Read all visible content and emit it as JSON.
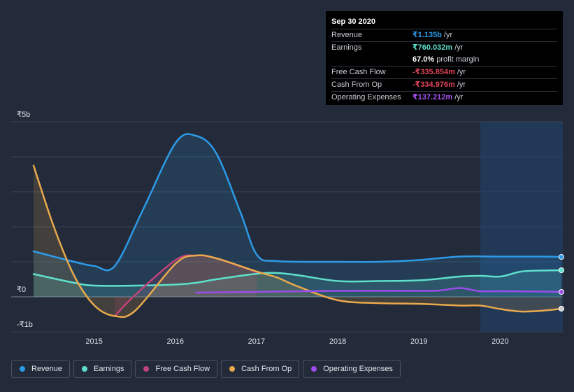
{
  "tooltip": {
    "date": "Sep 30 2020",
    "rows": [
      {
        "key": "Revenue",
        "value": "₹1.135b",
        "unit": "/yr",
        "color": "#2d9ae8"
      },
      {
        "key": "Earnings",
        "value": "₹760.032m",
        "unit": "/yr",
        "color": "#5ee0cc"
      },
      {
        "key": "",
        "value": "67.0%",
        "unit": "profit margin",
        "color": "#ffffff"
      },
      {
        "key": "Free Cash Flow",
        "value": "-₹335.854m",
        "unit": "/yr",
        "color": "#e2455a"
      },
      {
        "key": "Cash From Op",
        "value": "-₹334.976m",
        "unit": "/yr",
        "color": "#e2455a"
      },
      {
        "key": "Operating Expenses",
        "value": "₹137.212m",
        "unit": "/yr",
        "color": "#a855f7"
      }
    ]
  },
  "legend": [
    {
      "label": "Revenue",
      "color": "#2d9ae8"
    },
    {
      "label": "Earnings",
      "color": "#5ee0cc"
    },
    {
      "label": "Free Cash Flow",
      "color": "#c0437a"
    },
    {
      "label": "Cash From Op",
      "color": "#e9a94c"
    },
    {
      "label": "Operating Expenses",
      "color": "#9b4dea"
    }
  ],
  "chart_data": {
    "type": "line",
    "y_unit": "₹b",
    "ylim": [
      -1,
      5
    ],
    "xlim": [
      2014.25,
      2020.75
    ],
    "y_ticks": [
      {
        "value": 5,
        "label": "₹5b"
      },
      {
        "value": 0,
        "label": "₹0"
      },
      {
        "value": -1,
        "label": "-₹1b"
      }
    ],
    "x_ticks": [
      {
        "value": 2015,
        "label": "2015"
      },
      {
        "value": 2016,
        "label": "2016"
      },
      {
        "value": 2017,
        "label": "2017"
      },
      {
        "value": 2018,
        "label": "2018"
      },
      {
        "value": 2019,
        "label": "2019"
      },
      {
        "value": 2020,
        "label": "2020"
      }
    ],
    "forecast_start": 2019.75,
    "series": [
      {
        "name": "Revenue",
        "color": "#2d9ae8",
        "fill": true,
        "x": [
          2014.25,
          2014.75,
          2015.0,
          2015.25,
          2015.6,
          2016.0,
          2016.25,
          2016.5,
          2016.8,
          2017.0,
          2017.25,
          2018.0,
          2018.5,
          2019.0,
          2019.5,
          2020.0,
          2020.5,
          2020.75
        ],
        "y": [
          1.3,
          1.0,
          0.88,
          0.88,
          2.5,
          4.4,
          4.6,
          4.1,
          2.4,
          1.2,
          1.02,
          1.0,
          1.0,
          1.05,
          1.15,
          1.15,
          1.15,
          1.14
        ]
      },
      {
        "name": "Earnings",
        "color": "#5ee0cc",
        "fill": true,
        "x": [
          2014.25,
          2014.75,
          2015.0,
          2015.5,
          2016.0,
          2016.25,
          2016.5,
          2017.0,
          2017.25,
          2017.5,
          2018.0,
          2018.5,
          2019.0,
          2019.25,
          2019.5,
          2019.75,
          2020.0,
          2020.25,
          2020.5,
          2020.75
        ],
        "y": [
          0.65,
          0.4,
          0.32,
          0.32,
          0.35,
          0.4,
          0.5,
          0.66,
          0.68,
          0.62,
          0.45,
          0.45,
          0.47,
          0.52,
          0.58,
          0.6,
          0.58,
          0.72,
          0.75,
          0.76
        ]
      },
      {
        "name": "Free Cash Flow",
        "color": "#c0437a",
        "fill": true,
        "x": [
          2015.25,
          2015.5,
          2016.0,
          2016.25,
          2016.5,
          2017.0
        ],
        "y": [
          -0.55,
          0.05,
          1.05,
          1.18,
          1.1,
          0.7
        ]
      },
      {
        "name": "Cash From Op",
        "color": "#e9a94c",
        "fill": true,
        "x": [
          2014.25,
          2014.5,
          2014.75,
          2015.0,
          2015.25,
          2015.5,
          2016.0,
          2016.25,
          2016.5,
          2017.0,
          2017.25,
          2017.5,
          2018.0,
          2018.5,
          2019.0,
          2019.5,
          2019.75,
          2020.0,
          2020.25,
          2020.5,
          2020.75
        ],
        "y": [
          3.75,
          2.0,
          0.6,
          -0.25,
          -0.55,
          -0.4,
          0.95,
          1.18,
          1.1,
          0.72,
          0.55,
          0.3,
          -0.1,
          -0.18,
          -0.2,
          -0.25,
          -0.25,
          -0.35,
          -0.42,
          -0.4,
          -0.34
        ]
      },
      {
        "name": "Operating Expenses",
        "color": "#9b4dea",
        "fill": false,
        "x": [
          2016.25,
          2017.0,
          2018.0,
          2019.0,
          2019.25,
          2019.5,
          2019.75,
          2020.0,
          2020.5,
          2020.75
        ],
        "y": [
          0.12,
          0.14,
          0.17,
          0.17,
          0.18,
          0.25,
          0.16,
          0.16,
          0.15,
          0.14
        ]
      }
    ]
  }
}
